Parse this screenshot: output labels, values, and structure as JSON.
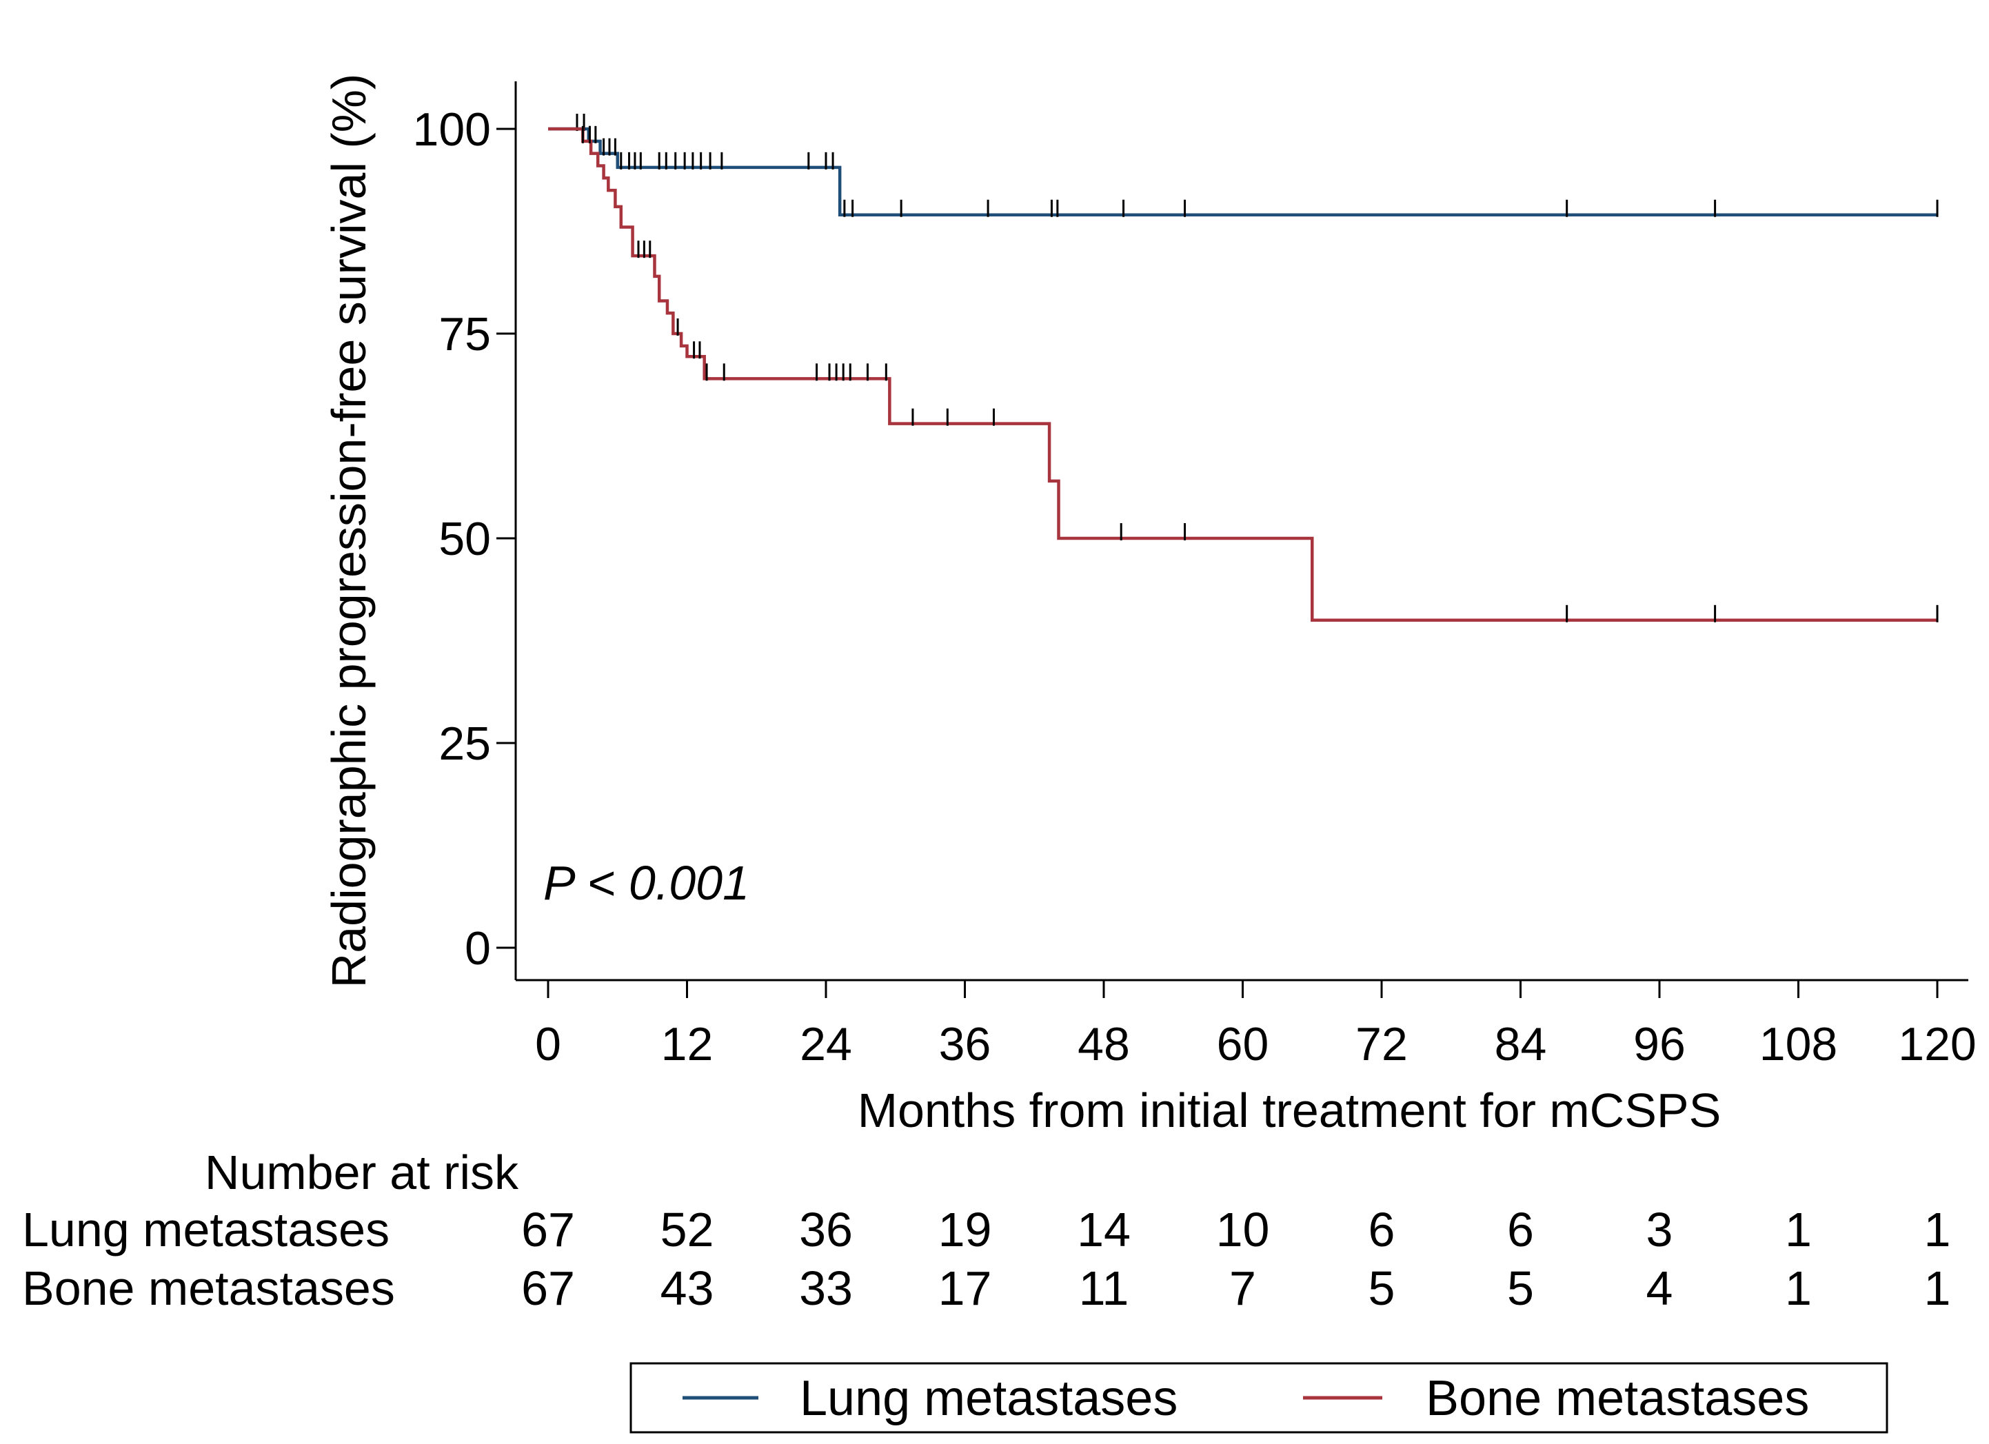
{
  "chart_data": {
    "type": "line",
    "subtype": "kaplan-meier",
    "xlabel": "Months from initial treatment for mCSPS",
    "ylabel": "Radiographic progression-free survival (%)",
    "xlim": [
      0,
      120
    ],
    "ylim": [
      0,
      100
    ],
    "xticks": [
      0,
      12,
      24,
      36,
      48,
      60,
      72,
      84,
      96,
      108,
      120
    ],
    "yticks": [
      0,
      25,
      50,
      75,
      100
    ],
    "grid": false,
    "annotation": "P < 0.001",
    "series": [
      {
        "name": "Lung metastases",
        "color": "#1f4e79",
        "steps": [
          [
            0,
            100
          ],
          [
            3.5,
            98.5
          ],
          [
            4.5,
            97
          ],
          [
            6,
            95.3
          ],
          [
            25.2,
            89.5
          ],
          [
            120,
            89.5
          ]
        ],
        "censor_times": [
          2.5,
          3.1,
          3.6,
          4.1,
          4.8,
          5.3,
          5.8,
          6.3,
          7,
          7.5,
          8,
          9.6,
          10.2,
          11,
          11.8,
          12.5,
          13.2,
          14,
          15,
          22.5,
          24,
          24.6,
          25.6,
          26.3,
          30.5,
          38,
          43.5,
          44,
          49.7,
          55,
          88,
          100.8,
          120
        ]
      },
      {
        "name": "Bone metastases",
        "color": "#a8343d",
        "steps": [
          [
            0,
            100
          ],
          [
            3,
            98.5
          ],
          [
            3.7,
            97
          ],
          [
            4.3,
            95.5
          ],
          [
            4.8,
            94
          ],
          [
            5.2,
            92.5
          ],
          [
            5.8,
            90.5
          ],
          [
            6.3,
            88
          ],
          [
            7.3,
            84.5
          ],
          [
            9.2,
            82
          ],
          [
            9.6,
            79
          ],
          [
            10.3,
            77.5
          ],
          [
            10.8,
            75
          ],
          [
            11.5,
            73.5
          ],
          [
            12,
            72.2
          ],
          [
            13.5,
            69.5
          ],
          [
            29.5,
            64
          ],
          [
            43.3,
            57
          ],
          [
            44.1,
            50
          ],
          [
            66,
            40
          ],
          [
            120,
            40
          ]
        ],
        "censor_times": [
          3,
          3.6,
          7.8,
          8.3,
          8.8,
          11.2,
          12.6,
          13.1,
          13.7,
          15.2,
          23.2,
          24.3,
          24.9,
          25.5,
          26.1,
          27.6,
          29.2,
          31.5,
          34.5,
          38.5,
          49.5,
          55,
          88,
          100.8,
          120
        ]
      }
    ],
    "risk_table": {
      "title": "Number at risk",
      "times": [
        0,
        12,
        24,
        36,
        48,
        60,
        72,
        84,
        96,
        108,
        120
      ],
      "rows": [
        {
          "label": "Lung metastases",
          "values": [
            67,
            52,
            36,
            19,
            14,
            10,
            6,
            6,
            3,
            1,
            1
          ]
        },
        {
          "label": "Bone metastases",
          "values": [
            67,
            43,
            33,
            17,
            11,
            7,
            5,
            5,
            4,
            1,
            1
          ]
        }
      ]
    },
    "legend": {
      "placement": "bottom",
      "entries": [
        "Lung metastases",
        "Bone metastases"
      ]
    }
  }
}
